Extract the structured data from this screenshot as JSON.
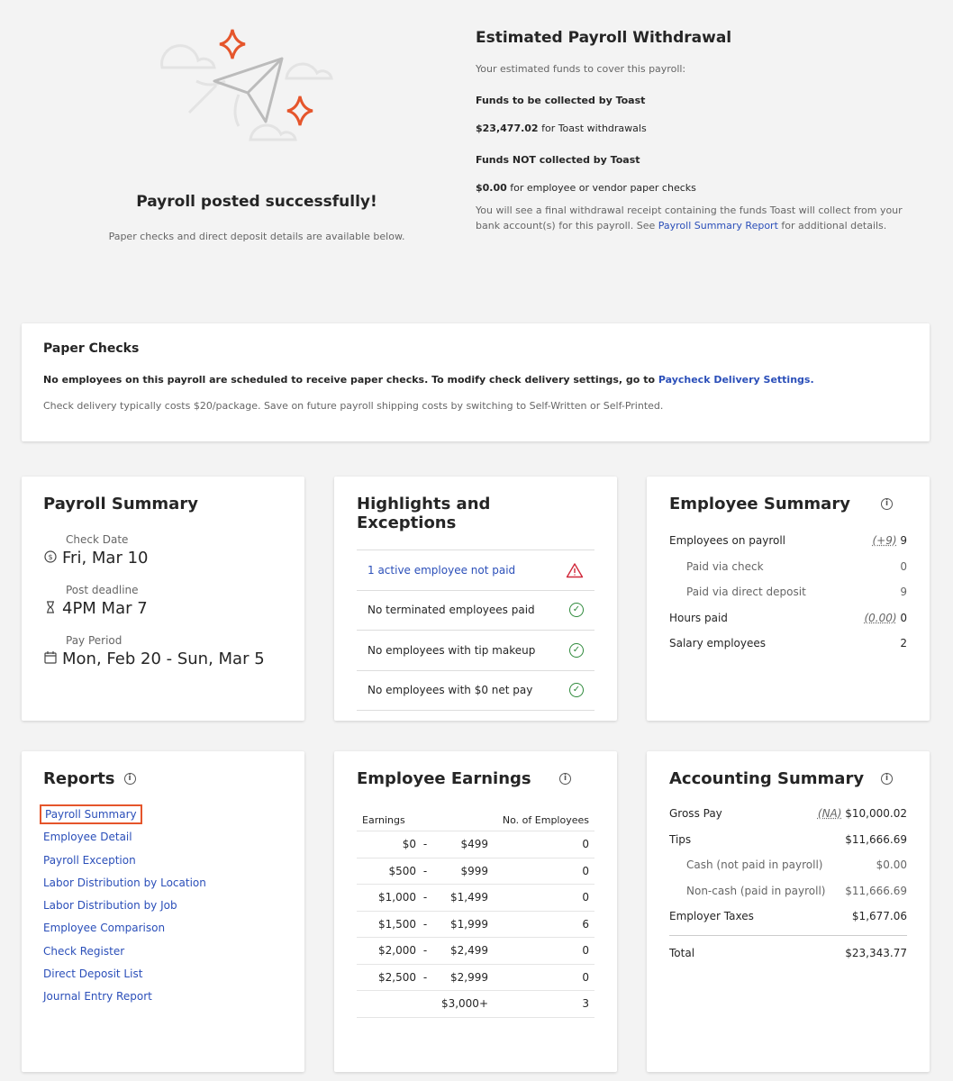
{
  "hero": {
    "title": "Payroll posted successfully!",
    "subtitle": "Paper checks and direct deposit details are available below."
  },
  "withdrawal": {
    "title": "Estimated Payroll Withdrawal",
    "intro": "Your estimated funds to cover this payroll:",
    "collected_label": "Funds to be collected by Toast",
    "collected_amount": "$23,477.02",
    "collected_text": " for Toast withdrawals",
    "not_collected_label": "Funds NOT collected by Toast",
    "not_collected_amount": "$0.00",
    "not_collected_text": " for employee or vendor paper checks",
    "note_pre": "You will see a final withdrawal receipt containing the funds Toast will collect from your bank account(s) for this payroll. See ",
    "note_link": "Payroll Summary Report",
    "note_post": " for additional details."
  },
  "paper_checks": {
    "title": "Paper Checks",
    "line1": "No employees on this payroll are scheduled to receive paper checks. To modify check delivery settings, go to ",
    "line1_link": "Paycheck Delivery Settings.",
    "line2": "Check delivery typically costs $20/package. Save on future payroll shipping costs by switching to Self-Written or Self-Printed."
  },
  "payroll_summary": {
    "title": "Payroll Summary",
    "items": [
      {
        "label": "Check Date",
        "value": "Fri, Mar 10",
        "icon": "check-date-icon"
      },
      {
        "label": "Post deadline",
        "value": "4PM Mar 7",
        "icon": "hourglass-icon"
      },
      {
        "label": "Pay Period",
        "value": "Mon, Feb 20 - Sun, Mar 5",
        "icon": "calendar-icon"
      }
    ]
  },
  "highlights": {
    "title": "Highlights and Exceptions",
    "items": [
      {
        "text": "1 active employee not paid",
        "status": "warning"
      },
      {
        "text": "No terminated employees paid",
        "status": "ok"
      },
      {
        "text": "No employees with tip makeup",
        "status": "ok"
      },
      {
        "text": "No employees with $0 net pay",
        "status": "ok"
      }
    ]
  },
  "employee_summary": {
    "title": "Employee Summary",
    "rows": [
      {
        "label": "Employees on payroll",
        "delta": "(+9)",
        "value": "9"
      },
      {
        "label": "Paid via check",
        "value": "0"
      },
      {
        "label": "Paid via direct deposit",
        "value": "9"
      },
      {
        "label": "Hours paid",
        "delta": "(0.00)",
        "value": "0"
      },
      {
        "label": "Salary employees",
        "value": "2"
      }
    ]
  },
  "reports": {
    "title": "Reports",
    "items": [
      "Payroll Summary",
      "Employee Detail",
      "Payroll Exception",
      "Labor Distribution by Location",
      "Labor Distribution by Job",
      "Employee Comparison",
      "Check Register",
      "Direct Deposit List",
      "Journal Entry Report"
    ]
  },
  "earnings": {
    "title": "Employee Earnings",
    "col1": "Earnings",
    "col2": "No. of Employees",
    "rows": [
      [
        "$0",
        "-",
        "$499",
        "0"
      ],
      [
        "$500",
        "-",
        "$999",
        "0"
      ],
      [
        "$1,000",
        "-",
        "$1,499",
        "0"
      ],
      [
        "$1,500",
        "-",
        "$1,999",
        "6"
      ],
      [
        "$2,000",
        "-",
        "$2,499",
        "0"
      ],
      [
        "$2,500",
        "-",
        "$2,999",
        "0"
      ],
      [
        "",
        "",
        "$3,000+",
        "3"
      ]
    ]
  },
  "accounting": {
    "title": "Accounting Summary",
    "rows": [
      {
        "label": "Gross Pay",
        "delta": "(NA)",
        "value": "$10,000.02"
      },
      {
        "label": "Tips",
        "value": "$11,666.69"
      },
      {
        "label": "Cash (not paid in payroll)",
        "value": "$0.00"
      },
      {
        "label": "Non-cash (paid in payroll)",
        "value": "$11,666.69"
      },
      {
        "label": "Employer Taxes",
        "value": "$1,677.06"
      }
    ],
    "total_label": "Total",
    "total_value": "$23,343.77"
  },
  "colors": {
    "accent": "#e5552b",
    "link": "#2b4fb9",
    "success": "#2f8a3c",
    "warning": "#d0283a"
  }
}
